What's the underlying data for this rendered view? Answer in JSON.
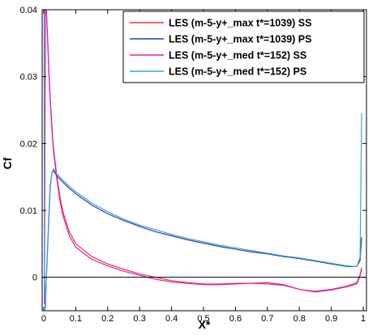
{
  "chart_data": {
    "type": "line",
    "xlabel": "X*",
    "ylabel": "Cf",
    "xlim": [
      -0.005,
      1.01
    ],
    "ylim": [
      -0.005,
      0.04
    ],
    "x_ticks": [
      0,
      0.1,
      0.2,
      0.3,
      0.4,
      0.5,
      0.6,
      0.7,
      0.8,
      0.9,
      1
    ],
    "x_tick_labels": [
      "0",
      "0.1",
      "0.2",
      "0.3",
      "0.4",
      "0.5",
      "0.6",
      "0.7",
      "0.8",
      "0.9",
      "1"
    ],
    "y_ticks": [
      0,
      0.01,
      0.02,
      0.03,
      0.04
    ],
    "y_tick_labels": [
      "0",
      "0.01",
      "0.02",
      "0.03",
      "0.04"
    ],
    "zero_line": true,
    "grid": false,
    "legend_position": "top-right",
    "series": [
      {
        "name": "LES (m-5-y+_max t*=1039) SS",
        "color": "#e03a3a",
        "points": [
          [
            0.002,
            -0.004
          ],
          [
            0.005,
            0.04
          ],
          [
            0.008,
            0.04
          ],
          [
            0.012,
            0.036
          ],
          [
            0.016,
            0.031
          ],
          [
            0.02,
            0.027
          ],
          [
            0.025,
            0.023
          ],
          [
            0.03,
            0.0195
          ],
          [
            0.04,
            0.0155
          ],
          [
            0.05,
            0.0122
          ],
          [
            0.06,
            0.0098
          ],
          [
            0.08,
            0.0068
          ],
          [
            0.1,
            0.005
          ],
          [
            0.15,
            0.0031
          ],
          [
            0.2,
            0.002
          ],
          [
            0.25,
            0.0012
          ],
          [
            0.3,
            0.0005
          ],
          [
            0.35,
            0.0
          ],
          [
            0.4,
            -0.0005
          ],
          [
            0.45,
            -0.0008
          ],
          [
            0.5,
            -0.001
          ],
          [
            0.55,
            -0.001
          ],
          [
            0.6,
            -0.0009
          ],
          [
            0.65,
            -0.0009
          ],
          [
            0.7,
            -0.001
          ],
          [
            0.75,
            -0.0012
          ],
          [
            0.8,
            -0.0018
          ],
          [
            0.85,
            -0.0021
          ],
          [
            0.9,
            -0.0018
          ],
          [
            0.95,
            -0.0013
          ],
          [
            0.98,
            -0.0008
          ],
          [
            0.99,
            0.0004
          ],
          [
            0.995,
            0.0015
          ]
        ]
      },
      {
        "name": "LES (m-5-y+_max t*=1039) PS",
        "color": "#2b3fae",
        "points": [
          [
            0.002,
            0.0
          ],
          [
            0.005,
            -0.0048
          ],
          [
            0.008,
            0.0
          ],
          [
            0.01,
            0.002
          ],
          [
            0.015,
            0.008
          ],
          [
            0.02,
            0.0135
          ],
          [
            0.025,
            0.0155
          ],
          [
            0.03,
            0.016
          ],
          [
            0.04,
            0.0152
          ],
          [
            0.06,
            0.0142
          ],
          [
            0.08,
            0.0133
          ],
          [
            0.1,
            0.0125
          ],
          [
            0.15,
            0.0108
          ],
          [
            0.2,
            0.0095
          ],
          [
            0.25,
            0.0085
          ],
          [
            0.3,
            0.0076
          ],
          [
            0.35,
            0.0068
          ],
          [
            0.4,
            0.0062
          ],
          [
            0.45,
            0.0056
          ],
          [
            0.5,
            0.0051
          ],
          [
            0.55,
            0.0046
          ],
          [
            0.6,
            0.0042
          ],
          [
            0.65,
            0.0038
          ],
          [
            0.7,
            0.0035
          ],
          [
            0.75,
            0.0031
          ],
          [
            0.8,
            0.0028
          ],
          [
            0.85,
            0.0024
          ],
          [
            0.9,
            0.002
          ],
          [
            0.95,
            0.0016
          ],
          [
            0.98,
            0.0016
          ],
          [
            0.99,
            0.0025
          ],
          [
            0.995,
            0.006
          ]
        ]
      },
      {
        "name": "LES (m-5-y+_med t*=152) SS",
        "color": "#e020b8",
        "points": [
          [
            0.002,
            -0.004
          ],
          [
            0.005,
            0.04
          ],
          [
            0.008,
            0.04
          ],
          [
            0.012,
            0.0355
          ],
          [
            0.016,
            0.0305
          ],
          [
            0.02,
            0.0265
          ],
          [
            0.025,
            0.0225
          ],
          [
            0.03,
            0.019
          ],
          [
            0.04,
            0.015
          ],
          [
            0.05,
            0.0116
          ],
          [
            0.06,
            0.0092
          ],
          [
            0.08,
            0.0062
          ],
          [
            0.1,
            0.0045
          ],
          [
            0.15,
            0.0027
          ],
          [
            0.2,
            0.0017
          ],
          [
            0.25,
            0.0009
          ],
          [
            0.3,
            0.0003
          ],
          [
            0.35,
            -0.0003
          ],
          [
            0.4,
            -0.0007
          ],
          [
            0.45,
            -0.0009
          ],
          [
            0.5,
            -0.0011
          ],
          [
            0.55,
            -0.0011
          ],
          [
            0.6,
            -0.001
          ],
          [
            0.65,
            -0.0009
          ],
          [
            0.7,
            -0.0008
          ],
          [
            0.75,
            -0.0011
          ],
          [
            0.8,
            -0.0018
          ],
          [
            0.85,
            -0.0022
          ],
          [
            0.9,
            -0.0019
          ],
          [
            0.95,
            -0.0014
          ],
          [
            0.98,
            -0.001
          ],
          [
            0.99,
            0.0002
          ],
          [
            0.995,
            0.0012
          ]
        ]
      },
      {
        "name": "LES (m-5-y+_med t*=152) PS",
        "color": "#3aa0e8",
        "points": [
          [
            0.001,
            0.04
          ],
          [
            0.002,
            0.0
          ],
          [
            0.005,
            -0.0048
          ],
          [
            0.008,
            0.0
          ],
          [
            0.01,
            0.0015
          ],
          [
            0.015,
            0.0075
          ],
          [
            0.02,
            0.013
          ],
          [
            0.025,
            0.0155
          ],
          [
            0.03,
            0.0162
          ],
          [
            0.04,
            0.0155
          ],
          [
            0.06,
            0.0145
          ],
          [
            0.08,
            0.0136
          ],
          [
            0.1,
            0.0128
          ],
          [
            0.15,
            0.0111
          ],
          [
            0.2,
            0.0098
          ],
          [
            0.25,
            0.0087
          ],
          [
            0.3,
            0.0078
          ],
          [
            0.35,
            0.0071
          ],
          [
            0.4,
            0.0064
          ],
          [
            0.45,
            0.0058
          ],
          [
            0.5,
            0.0053
          ],
          [
            0.55,
            0.0048
          ],
          [
            0.6,
            0.0044
          ],
          [
            0.65,
            0.004
          ],
          [
            0.7,
            0.0036
          ],
          [
            0.75,
            0.0032
          ],
          [
            0.8,
            0.0029
          ],
          [
            0.85,
            0.0025
          ],
          [
            0.9,
            0.0021
          ],
          [
            0.95,
            0.0017
          ],
          [
            0.98,
            0.0016
          ],
          [
            0.99,
            0.003
          ],
          [
            0.995,
            0.0245
          ]
        ]
      }
    ]
  }
}
